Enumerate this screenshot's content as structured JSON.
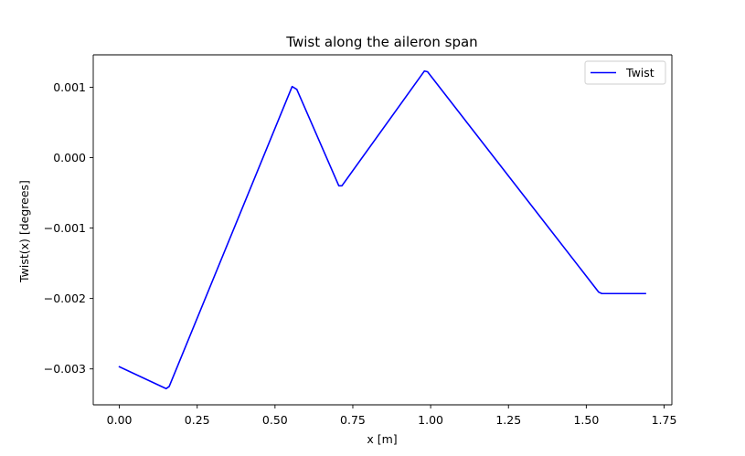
{
  "chart_data": {
    "type": "line",
    "title": "Twist along the aileron span",
    "xlabel": "x [m]",
    "ylabel": "Twist(x) [degrees]",
    "xlim": [
      -0.084,
      1.775
    ],
    "ylim": [
      -0.00351,
      0.00146
    ],
    "xticks": [
      0.0,
      0.25,
      0.5,
      0.75,
      1.0,
      1.25,
      1.5,
      1.75
    ],
    "xtick_labels": [
      "0.00",
      "0.25",
      "0.50",
      "0.75",
      "1.00",
      "1.25",
      "1.50",
      "1.75"
    ],
    "yticks": [
      -0.003,
      -0.002,
      -0.001,
      0.0,
      0.001
    ],
    "ytick_labels": [
      "−0.003",
      "−0.002",
      "−0.001",
      "0.000",
      "0.001"
    ],
    "grid": false,
    "legend": "top-right",
    "series": [
      {
        "name": "Twist",
        "color": "#0000ff",
        "x": [
          0.0,
          0.15,
          0.16,
          0.555,
          0.57,
          0.705,
          0.715,
          0.98,
          0.99,
          1.54,
          1.55,
          1.69
        ],
        "y": [
          -0.00297,
          -0.00328,
          -0.00325,
          0.00101,
          0.00097,
          -0.0004,
          -0.0004,
          0.00123,
          0.00122,
          -0.00191,
          -0.00193,
          -0.00193
        ]
      }
    ]
  }
}
